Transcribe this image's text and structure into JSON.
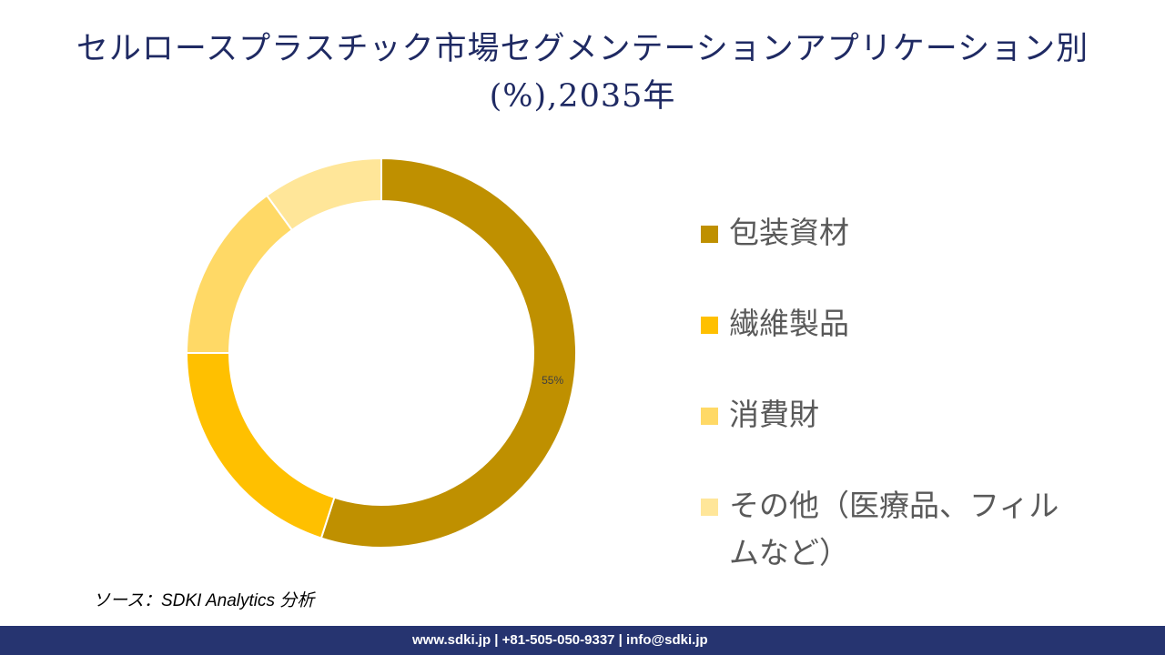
{
  "chart_data": {
    "type": "pie",
    "variant": "donut",
    "title": "セルロースプラスチック市場セグメンテーションアプリケーション別 (%),2035年",
    "categories": [
      "包装資材",
      "繊維製品",
      "消費財",
      "その他（医療品、フィルムなど）"
    ],
    "values": [
      55,
      20,
      15,
      10
    ],
    "colors": [
      "#BF9000",
      "#FFC000",
      "#FFD966",
      "#FFE699"
    ],
    "data_labels": [
      "55%",
      "",
      "",
      ""
    ],
    "legend_position": "right"
  },
  "source": "ソース：SDKI Analytics 分析",
  "footer": "www.sdki.jp | +81-505-050-9337 | info@sdki.jp"
}
